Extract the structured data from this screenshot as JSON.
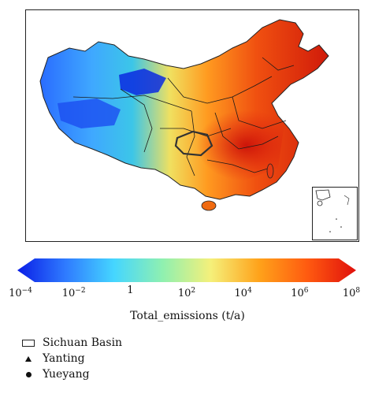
{
  "map": {
    "colorbar_stops": [
      "#0a1ee6",
      "#2f7bff",
      "#45d6ff",
      "#8ff0b0",
      "#f5f07a",
      "#ffa21a",
      "#ff5a10",
      "#e0100c"
    ],
    "colorbar_title": "Total_emissions (t/a)",
    "ticks": [
      {
        "base": "10",
        "exp": "−4"
      },
      {
        "base": "10",
        "exp": "−2"
      },
      {
        "base": "1",
        "exp": ""
      },
      {
        "base": "10",
        "exp": "2"
      },
      {
        "base": "10",
        "exp": "4"
      },
      {
        "base": "10",
        "exp": "6"
      },
      {
        "base": "10",
        "exp": "8"
      }
    ]
  },
  "legend": {
    "items": [
      {
        "symbol": "rectangle",
        "label": "Sichuan Basin"
      },
      {
        "symbol": "triangle",
        "label": "Yanting"
      },
      {
        "symbol": "circle",
        "label": "Yueyang"
      }
    ]
  }
}
